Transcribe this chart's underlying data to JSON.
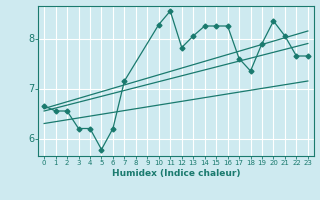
{
  "xlabel": "Humidex (Indice chaleur)",
  "bg_color": "#ceeaf0",
  "grid_color": "#ffffff",
  "line_color": "#1a7a6e",
  "xlim": [
    -0.5,
    23.5
  ],
  "ylim": [
    5.65,
    8.65
  ],
  "yticks": [
    6,
    7,
    8
  ],
  "xticks": [
    0,
    1,
    2,
    3,
    4,
    5,
    6,
    7,
    8,
    9,
    10,
    11,
    12,
    13,
    14,
    15,
    16,
    17,
    18,
    19,
    20,
    21,
    22,
    23
  ],
  "series1_x": [
    0,
    1,
    2,
    3,
    4,
    5,
    6,
    7,
    10,
    11,
    12,
    13,
    14,
    15,
    16,
    17,
    18,
    19,
    20,
    21,
    22,
    23
  ],
  "series1_y": [
    6.65,
    6.55,
    6.55,
    6.2,
    6.2,
    5.78,
    6.2,
    7.15,
    8.28,
    8.55,
    7.82,
    8.05,
    8.25,
    8.25,
    8.25,
    7.6,
    7.35,
    7.9,
    8.35,
    8.05,
    7.65,
    7.65
  ],
  "line1_x": [
    0,
    23
  ],
  "line1_y": [
    6.3,
    7.15
  ],
  "line2_x": [
    0,
    23
  ],
  "line2_y": [
    6.55,
    7.9
  ],
  "line3_x": [
    0,
    23
  ],
  "line3_y": [
    6.6,
    8.15
  ]
}
